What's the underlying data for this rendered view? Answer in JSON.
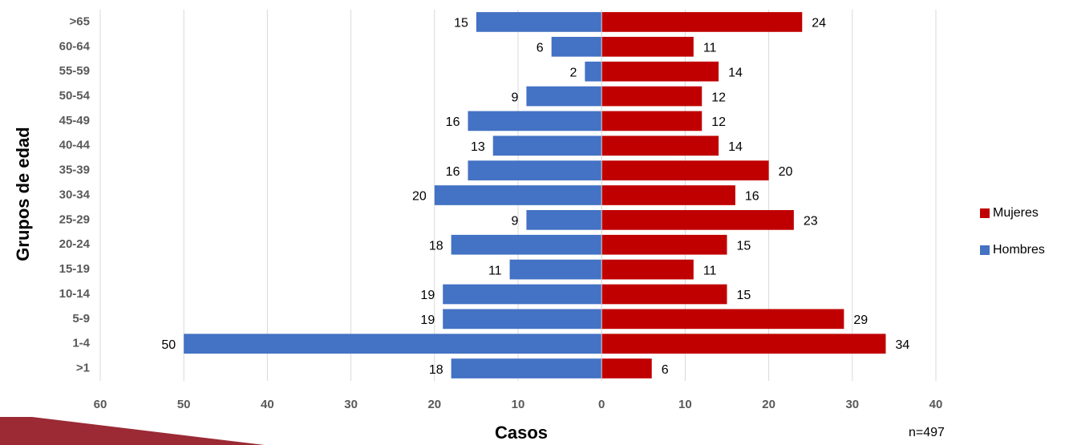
{
  "chart_data": {
    "type": "bar",
    "orientation": "horizontal",
    "stacked": true,
    "y_label": "Grupos de edad",
    "x_label": "Casos",
    "annotation": "n=497",
    "categories": [
      ">1",
      "1-4",
      "5-9",
      "10-14",
      "15-19",
      "20-24",
      "25-29",
      "30-34",
      "35-39",
      "40-44",
      "45-49",
      "50-54",
      "55-59",
      "60-64",
      ">65"
    ],
    "series": [
      {
        "name": "Mujeres",
        "color": "#c00000",
        "values": [
          6,
          34,
          29,
          15,
          11,
          15,
          23,
          16,
          20,
          14,
          12,
          12,
          14,
          11,
          24
        ]
      },
      {
        "name": "Hombres",
        "color": "#4472c4",
        "values": [
          -18,
          -50,
          -19,
          -19,
          -11,
          -18,
          -9,
          -20,
          -16,
          -13,
          -16,
          -9,
          -2,
          -6,
          -15
        ],
        "value_labels": [
          "18",
          "50",
          "19",
          "19",
          "11",
          "18",
          "9",
          "20",
          "16",
          "13",
          "16",
          "9",
          "2",
          "6",
          "15"
        ]
      }
    ],
    "xlim": [
      -60,
      40
    ],
    "xticks": [
      {
        "value": -60,
        "label": "60"
      },
      {
        "value": -50,
        "label": "50"
      },
      {
        "value": -40,
        "label": "40"
      },
      {
        "value": -30,
        "label": "30"
      },
      {
        "value": -20,
        "label": "20"
      },
      {
        "value": -10,
        "label": "10"
      },
      0,
      10,
      20,
      30,
      40
    ],
    "grid": true,
    "legend": "right"
  }
}
